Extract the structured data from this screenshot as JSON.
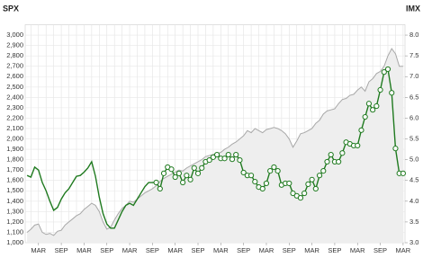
{
  "chart_data": {
    "type": "line",
    "y_label": "SPX",
    "y2_label": "IMX",
    "categories": [
      null,
      null,
      null,
      "MAR",
      null,
      null,
      null,
      null,
      null,
      "SEP",
      null,
      null,
      null,
      null,
      null,
      "MAR",
      null,
      null,
      null,
      null,
      null,
      "SEP",
      null,
      null,
      null,
      null,
      null,
      "MAR",
      null,
      null,
      null,
      null,
      null,
      "SEP",
      null,
      null,
      null,
      null,
      null,
      "MAR",
      null,
      null,
      null,
      null,
      null,
      "SEP",
      null,
      null,
      null,
      null,
      null,
      "MAR",
      null,
      null,
      null,
      null,
      null,
      "SEP",
      null,
      null,
      null,
      null,
      null,
      "MAR",
      null,
      null,
      null,
      null,
      null,
      "SEP",
      null,
      null,
      null,
      null,
      null,
      "MAR",
      null,
      null,
      null,
      null,
      null,
      "SEP",
      null,
      null,
      null,
      null,
      null,
      "MAR",
      null,
      null,
      null,
      null,
      null,
      "SEP",
      null,
      null,
      null,
      null,
      null,
      "MAR"
    ],
    "series": [
      {
        "name": "SPX",
        "style": "area",
        "color": "#a8a8a8",
        "fill": "#eeeeee",
        "values": [
          1100,
          1130,
          1170,
          1180,
          1100,
          1080,
          1090,
          1070,
          1110,
          1120,
          1170,
          1200,
          1230,
          1260,
          1280,
          1320,
          1350,
          1380,
          1360,
          1300,
          1200,
          1130,
          1150,
          1220,
          1280,
          1330,
          1360,
          1400,
          1390,
          1420,
          1450,
          1480,
          1500,
          1520,
          1550,
          1590,
          1620,
          1640,
          1660,
          1680,
          1700,
          1690,
          1720,
          1740,
          1760,
          1780,
          1800,
          1830,
          1840,
          1850,
          1860,
          1870,
          1900,
          1920,
          1950,
          1970,
          2000,
          2030,
          2080,
          2060,
          2100,
          2080,
          2060,
          2090,
          2100,
          2110,
          2100,
          2080,
          2050,
          2000,
          1920,
          1980,
          2050,
          2060,
          2080,
          2100,
          2150,
          2180,
          2240,
          2270,
          2280,
          2290,
          2340,
          2380,
          2390,
          2420,
          2430,
          2470,
          2500,
          2460,
          2550,
          2580,
          2630,
          2650,
          2700,
          2800,
          2870,
          2820,
          2700,
          2700
        ]
      },
      {
        "name": "IMX",
        "style": "line",
        "axis": "y2",
        "color": "#1f7a1f",
        "marker_start": 34,
        "values": [
          4.62,
          4.58,
          4.82,
          4.75,
          4.45,
          4.25,
          4.0,
          3.78,
          3.85,
          4.05,
          4.2,
          4.3,
          4.45,
          4.6,
          4.62,
          4.7,
          4.8,
          4.95,
          4.6,
          4.1,
          3.7,
          3.45,
          3.35,
          3.35,
          3.55,
          3.75,
          3.9,
          3.95,
          3.9,
          4.05,
          4.2,
          4.35,
          4.45,
          4.45,
          4.45,
          4.3,
          4.67,
          4.82,
          4.77,
          4.58,
          4.67,
          4.45,
          4.62,
          4.52,
          4.8,
          4.67,
          4.8,
          4.95,
          4.99,
          5.06,
          5.12,
          5.03,
          5.03,
          5.12,
          5.01,
          5.12,
          4.99,
          4.69,
          4.62,
          4.62,
          4.47,
          4.34,
          4.3,
          4.43,
          4.73,
          4.82,
          4.73,
          4.39,
          4.43,
          4.43,
          4.19,
          4.13,
          4.08,
          4.19,
          4.41,
          4.52,
          4.3,
          4.62,
          4.73,
          4.95,
          5.12,
          4.95,
          4.95,
          5.16,
          5.42,
          5.38,
          5.34,
          5.34,
          5.71,
          6.03,
          6.35,
          6.2,
          6.29,
          6.68,
          7.11,
          7.18,
          6.61,
          5.27,
          4.67,
          4.67
        ]
      }
    ],
    "ylim": [
      1000,
      3100
    ],
    "yticks": [
      {
        "value": 1000,
        "label": "1,000"
      },
      {
        "value": 1100,
        "label": "1,100"
      },
      {
        "value": 1200,
        "label": "1,200"
      },
      {
        "value": 1300,
        "label": "1,300"
      },
      {
        "value": 1400,
        "label": "1,400"
      },
      {
        "value": 1500,
        "label": "1,500"
      },
      {
        "value": 1600,
        "label": "1,600"
      },
      {
        "value": 1700,
        "label": "1,700"
      },
      {
        "value": 1800,
        "label": "1,800"
      },
      {
        "value": 1900,
        "label": "1,900"
      },
      {
        "value": 2000,
        "label": "2,000"
      },
      {
        "value": 2100,
        "label": "2,100"
      },
      {
        "value": 2200,
        "label": "2,200"
      },
      {
        "value": 2300,
        "label": "2,300"
      },
      {
        "value": 2400,
        "label": "2,400"
      },
      {
        "value": 2500,
        "label": "2,500"
      },
      {
        "value": 2600,
        "label": "2,600"
      },
      {
        "value": 2700,
        "label": "2,700"
      },
      {
        "value": 2800,
        "label": "2,800"
      },
      {
        "value": 2900,
        "label": "2,900"
      },
      {
        "value": 3000,
        "label": "3,000"
      }
    ],
    "y2lim": [
      3,
      8.25
    ],
    "y2ticks": [
      {
        "value": 3,
        "label": "3.0"
      },
      {
        "value": 3.5,
        "label": "3.5"
      },
      {
        "value": 4,
        "label": "4.0"
      },
      {
        "value": 4.5,
        "label": "4.5"
      },
      {
        "value": 5,
        "label": "5.0"
      },
      {
        "value": 5.5,
        "label": "5.5"
      },
      {
        "value": 6,
        "label": "6.0"
      },
      {
        "value": 6.5,
        "label": "6.5"
      },
      {
        "value": 7,
        "label": "7.0"
      },
      {
        "value": 7.5,
        "label": "7.5"
      },
      {
        "value": 8,
        "label": "8.0"
      }
    ],
    "grid": true
  }
}
